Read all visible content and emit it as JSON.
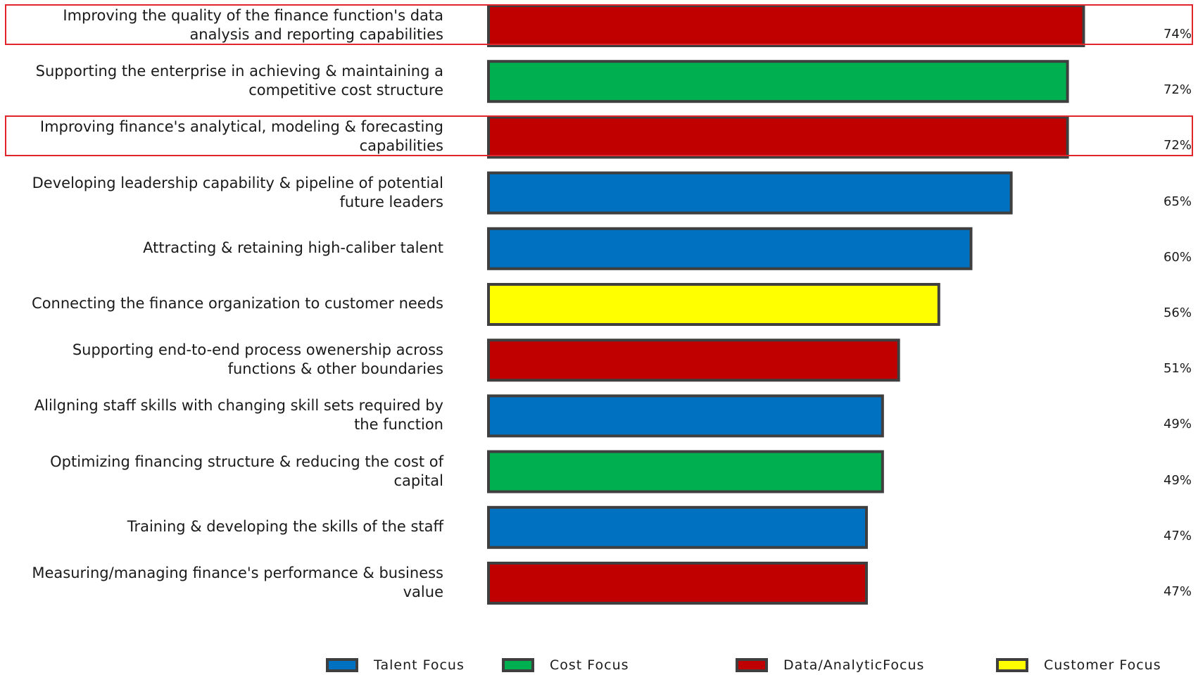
{
  "chart_data": {
    "type": "bar",
    "orientation": "horizontal",
    "categories": [
      "Improving the quality of the finance function's data\nanalysis and reporting capabilities",
      "Supporting the enterprise in achieving & maintaining a\ncompetitive cost structure",
      "Improving finance's analytical, modeling & forecasting\ncapabilities",
      "Developing leadership capability & pipeline of potential\nfuture leaders",
      "Attracting & retaining high-caliber talent",
      "Connecting the finance organization to customer needs",
      "Supporting end-to-end process owenership across\nfunctions & other boundaries",
      "Alilgning staff skills with changing skill sets required by\nthe function",
      "Optimizing financing structure & reducing the cost of\ncapital",
      "Training & developing the skills of the staff",
      "Measuring/managing finance's performance & business\nvalue"
    ],
    "values": [
      74,
      72,
      72,
      65,
      60,
      56,
      51,
      49,
      49,
      47,
      47
    ],
    "value_labels": [
      "74%",
      "72%",
      "72%",
      "65%",
      "60%",
      "56%",
      "51%",
      "49%",
      "49%",
      "47%",
      "47%"
    ],
    "focus": [
      "data",
      "cost",
      "data",
      "talent",
      "talent",
      "customer",
      "data",
      "talent",
      "cost",
      "talent",
      "data"
    ],
    "highlighted": [
      true,
      false,
      true,
      false,
      false,
      false,
      false,
      false,
      false,
      false,
      false
    ],
    "xlim": [
      0,
      80
    ],
    "grid": false,
    "legend_position": "bottom",
    "legend": [
      {
        "key": "talent",
        "label": "Talent Focus",
        "color": "#0070c0"
      },
      {
        "key": "cost",
        "label": "Cost Focus",
        "color": "#00b050"
      },
      {
        "key": "data",
        "label": "Data/AnalyticFocus",
        "color": "#c00000"
      },
      {
        "key": "customer",
        "label": "Customer Focus",
        "color": "#ffff00"
      }
    ],
    "colors": {
      "talent": "#0070c0",
      "cost": "#00b050",
      "data": "#c00000",
      "customer": "#ffff00",
      "bar_border": "#3f3f3f",
      "highlight": "#e0262a"
    }
  }
}
